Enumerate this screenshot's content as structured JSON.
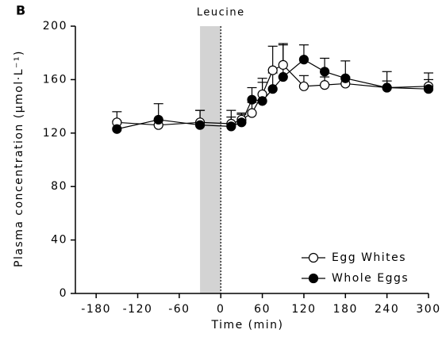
{
  "chart_data": {
    "type": "line",
    "panel_label": "B",
    "annotation": "Leucine",
    "xlabel": "Time (min)",
    "ylabel": "Plasma concentration (µmol·L⁻¹)",
    "x": [
      -150,
      -90,
      -30,
      15,
      30,
      45,
      60,
      75,
      90,
      120,
      150,
      180,
      240,
      300
    ],
    "series": [
      {
        "name": "Egg Whites",
        "color": "#000000",
        "marker": "open",
        "values": [
          128,
          126,
          128,
          127,
          130,
          135,
          149,
          167,
          171,
          155,
          156,
          157,
          154,
          155
        ],
        "errors": [
          8,
          4,
          9,
          5,
          5,
          8,
          9,
          18,
          15,
          8,
          6,
          5,
          5,
          5
        ]
      },
      {
        "name": "Whole Eggs",
        "color": "#000000",
        "marker": "filled",
        "values": [
          123,
          130,
          126,
          125,
          128,
          145,
          144,
          153,
          162,
          175,
          166,
          161,
          154,
          153
        ],
        "errors": [
          6,
          12,
          11,
          12,
          6,
          9,
          17,
          12,
          25,
          11,
          10,
          13,
          12,
          12
        ]
      }
    ],
    "shade": [
      -30,
      0
    ],
    "xlim": [
      -210,
      300
    ],
    "xticks": [
      -180,
      -120,
      -60,
      0,
      60,
      120,
      180,
      240,
      300
    ],
    "ylim": [
      0,
      200
    ],
    "yticks": [
      0,
      40,
      80,
      120,
      160,
      200
    ],
    "legend": "lower right"
  }
}
